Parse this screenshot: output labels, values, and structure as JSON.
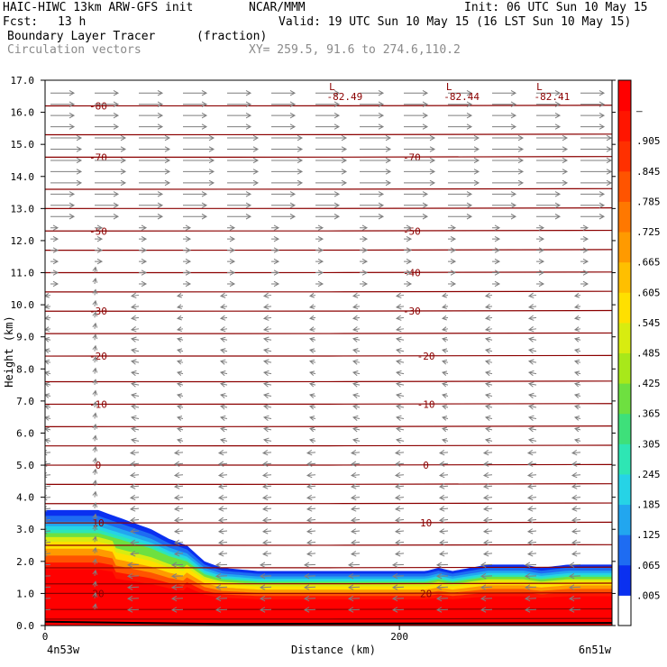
{
  "header": {
    "model": "HAIC-HIWC 13km ARW-GFS init",
    "org": "NCAR/MMM",
    "init": "Init: 06 UTC Sun 10 May 15",
    "fcst_label": "Fcst:",
    "fcst_value": "13 h",
    "valid": "Valid: 19 UTC Sun 10 May 15 (16 LST Sun 10 May 15)",
    "field": "Boundary Layer Tracer",
    "units": "(fraction)",
    "vectors": "Circulation vectors",
    "xy": "XY= 259.5, 91.6 to 274.6,110.2"
  },
  "colors": {
    "contour": "#8b0000",
    "vector": "#7f7f7f",
    "colorbar": [
      "#ffffff",
      "#0a30f0",
      "#1e6cf2",
      "#22a6ef",
      "#26d3e6",
      "#2ee6b4",
      "#3ee07a",
      "#6ee040",
      "#a8e81a",
      "#d8ec10",
      "#ffe000",
      "#ffbf00",
      "#ff9a00",
      "#ff7800",
      "#ff5400",
      "#ff3000",
      "#ff1500",
      "#ff0000"
    ]
  },
  "chart_data": {
    "type": "heatmap",
    "title": "Boundary Layer Tracer",
    "xlabel": "Distance (km)",
    "ylabel": "Height (km)",
    "xlim": [
      0,
      320
    ],
    "ylim": [
      0.0,
      17.0
    ],
    "xticks": [
      0,
      200
    ],
    "xtick_labels": [
      "0",
      "200"
    ],
    "x_endpoints": [
      "4n53w",
      "6n51w"
    ],
    "yticks": [
      0.0,
      1.0,
      2.0,
      3.0,
      4.0,
      5.0,
      6.0,
      7.0,
      8.0,
      9.0,
      10.0,
      11.0,
      12.0,
      13.0,
      14.0,
      15.0,
      16.0,
      17.0
    ],
    "ytick_labels": [
      "0.0",
      "1.0",
      "2.0",
      "3.0",
      "4.0",
      "5.0",
      "6.0",
      "7.0",
      "8.0",
      "9.0",
      "10.0",
      "11.0",
      "12.0",
      "13.0",
      "14.0",
      "15.0",
      "16.0",
      "17.0"
    ],
    "colorbar_labels": [
      ".005",
      ".065",
      ".125",
      ".185",
      ".245",
      ".305",
      ".365",
      ".425",
      ".485",
      ".545",
      ".605",
      ".665",
      ".725",
      ".785",
      ".845",
      ".905",
      "–"
    ],
    "tracer_top_km": [
      [
        0,
        3.6
      ],
      [
        30,
        3.6
      ],
      [
        45,
        3.3
      ],
      [
        60,
        3.0
      ],
      [
        70,
        2.7
      ],
      [
        80,
        2.5
      ],
      [
        90,
        2.0
      ],
      [
        100,
        1.8
      ],
      [
        120,
        1.7
      ],
      [
        160,
        1.7
      ],
      [
        200,
        1.7
      ],
      [
        215,
        1.7
      ],
      [
        222,
        1.8
      ],
      [
        230,
        1.7
      ],
      [
        240,
        1.8
      ],
      [
        250,
        1.9
      ],
      [
        270,
        1.9
      ],
      [
        280,
        1.8
      ],
      [
        295,
        1.9
      ],
      [
        320,
        1.9
      ]
    ],
    "temperature_contours_C": [
      {
        "label": "-80",
        "height_km": 16.2
      },
      {
        "label": "-70",
        "height_km": 14.6
      },
      {
        "label": "-50",
        "height_km": 12.3
      },
      {
        "label": "-40",
        "height_km": 11.0
      },
      {
        "label": "-30",
        "height_km": 9.8
      },
      {
        "label": "-20",
        "height_km": 8.4
      },
      {
        "label": "-10",
        "height_km": 6.9
      },
      {
        "label": "0",
        "height_km": 5.0
      },
      {
        "label": "10",
        "height_km": 3.2
      },
      {
        "label": "20",
        "height_km": 1.0
      }
    ],
    "low_pressure_markers": [
      {
        "symbol": "L",
        "value": "-82.49",
        "x_km": 162
      },
      {
        "symbol": "L",
        "value": "-82.44",
        "x_km": 228
      },
      {
        "symbol": "L",
        "value": "-82.41",
        "x_km": 279
      }
    ],
    "wind_vectors_note": "Circulation vectors"
  }
}
